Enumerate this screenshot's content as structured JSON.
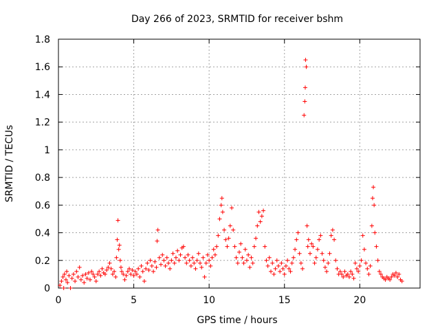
{
  "chart_data": {
    "type": "scatter",
    "title": "Day 266 of 2023, SRMTID for receiver bshm",
    "xlabel": "GPS time / hours",
    "ylabel": "SRMTID / TECUs",
    "xlim": [
      0,
      24
    ],
    "ylim": [
      0,
      1.8
    ],
    "xticks": [
      0,
      5,
      10,
      15,
      20
    ],
    "xtick_labels": [
      "0",
      "5",
      "10",
      "15",
      "20"
    ],
    "yticks": [
      0,
      0.2,
      0.4,
      0.6,
      0.8,
      1,
      1.2,
      1.4,
      1.6,
      1.8
    ],
    "ytick_labels": [
      "0",
      "0.2",
      "0.4",
      "0.6",
      "0.8",
      "1",
      "1.2",
      "1.4",
      "1.6",
      "1.8"
    ],
    "grid": true,
    "marker": "+",
    "color": "#ff0000",
    "series": [
      {
        "name": "SRMTID",
        "points": [
          [
            0.1,
            0.02
          ],
          [
            0.2,
            0.05
          ],
          [
            0.3,
            0.08
          ],
          [
            0.35,
            0.0
          ],
          [
            0.4,
            0.1
          ],
          [
            0.5,
            0.06
          ],
          [
            0.55,
            0.12
          ],
          [
            0.6,
            0.04
          ],
          [
            0.7,
            0.09
          ],
          [
            0.8,
            0.0
          ],
          [
            0.9,
            0.07
          ],
          [
            1.0,
            0.1
          ],
          [
            1.1,
            0.05
          ],
          [
            1.2,
            0.12
          ],
          [
            1.3,
            0.08
          ],
          [
            1.4,
            0.15
          ],
          [
            1.5,
            0.06
          ],
          [
            1.6,
            0.09
          ],
          [
            1.7,
            0.04
          ],
          [
            1.8,
            0.1
          ],
          [
            1.9,
            0.07
          ],
          [
            2.0,
            0.11
          ],
          [
            2.1,
            0.06
          ],
          [
            2.2,
            0.12
          ],
          [
            2.3,
            0.1
          ],
          [
            2.4,
            0.08
          ],
          [
            2.5,
            0.05
          ],
          [
            2.6,
            0.1
          ],
          [
            2.7,
            0.12
          ],
          [
            2.8,
            0.09
          ],
          [
            2.9,
            0.14
          ],
          [
            3.0,
            0.11
          ],
          [
            3.1,
            0.1
          ],
          [
            3.2,
            0.13
          ],
          [
            3.3,
            0.15
          ],
          [
            3.4,
            0.18
          ],
          [
            3.5,
            0.14
          ],
          [
            3.6,
            0.1
          ],
          [
            3.7,
            0.12
          ],
          [
            3.8,
            0.08
          ],
          [
            3.85,
            0.22
          ],
          [
            3.9,
            0.35
          ],
          [
            3.95,
            0.49
          ],
          [
            4.0,
            0.28
          ],
          [
            4.05,
            0.31
          ],
          [
            4.1,
            0.2
          ],
          [
            4.15,
            0.15
          ],
          [
            4.2,
            0.12
          ],
          [
            4.3,
            0.1
          ],
          [
            4.4,
            0.06
          ],
          [
            4.5,
            0.09
          ],
          [
            4.6,
            0.12
          ],
          [
            4.7,
            0.14
          ],
          [
            4.8,
            0.1
          ],
          [
            4.9,
            0.13
          ],
          [
            5.0,
            0.09
          ],
          [
            5.1,
            0.12
          ],
          [
            5.2,
            0.1
          ],
          [
            5.3,
            0.14
          ],
          [
            5.4,
            0.08
          ],
          [
            5.5,
            0.16
          ],
          [
            5.6,
            0.12
          ],
          [
            5.7,
            0.05
          ],
          [
            5.8,
            0.14
          ],
          [
            5.9,
            0.18
          ],
          [
            6.0,
            0.13
          ],
          [
            6.1,
            0.2
          ],
          [
            6.2,
            0.16
          ],
          [
            6.3,
            0.12
          ],
          [
            6.4,
            0.19
          ],
          [
            6.5,
            0.15
          ],
          [
            6.55,
            0.34
          ],
          [
            6.6,
            0.42
          ],
          [
            6.7,
            0.22
          ],
          [
            6.8,
            0.17
          ],
          [
            6.9,
            0.24
          ],
          [
            7.0,
            0.2
          ],
          [
            7.1,
            0.16
          ],
          [
            7.2,
            0.22
          ],
          [
            7.3,
            0.18
          ],
          [
            7.4,
            0.14
          ],
          [
            7.5,
            0.2
          ],
          [
            7.6,
            0.25
          ],
          [
            7.7,
            0.18
          ],
          [
            7.8,
            0.22
          ],
          [
            7.9,
            0.27
          ],
          [
            8.0,
            0.2
          ],
          [
            8.1,
            0.24
          ],
          [
            8.2,
            0.29
          ],
          [
            8.3,
            0.3
          ],
          [
            8.4,
            0.22
          ],
          [
            8.5,
            0.18
          ],
          [
            8.6,
            0.24
          ],
          [
            8.7,
            0.2
          ],
          [
            8.8,
            0.16
          ],
          [
            8.9,
            0.22
          ],
          [
            9.0,
            0.18
          ],
          [
            9.1,
            0.14
          ],
          [
            9.2,
            0.2
          ],
          [
            9.3,
            0.25
          ],
          [
            9.4,
            0.18
          ],
          [
            9.5,
            0.15
          ],
          [
            9.6,
            0.22
          ],
          [
            9.7,
            0.08
          ],
          [
            9.8,
            0.18
          ],
          [
            9.9,
            0.24
          ],
          [
            10.0,
            0.2
          ],
          [
            10.1,
            0.16
          ],
          [
            10.2,
            0.22
          ],
          [
            10.3,
            0.28
          ],
          [
            10.4,
            0.24
          ],
          [
            10.5,
            0.3
          ],
          [
            10.6,
            0.38
          ],
          [
            10.7,
            0.5
          ],
          [
            10.8,
            0.6
          ],
          [
            10.85,
            0.65
          ],
          [
            10.9,
            0.55
          ],
          [
            11.0,
            0.42
          ],
          [
            11.1,
            0.35
          ],
          [
            11.2,
            0.3
          ],
          [
            11.3,
            0.36
          ],
          [
            11.4,
            0.45
          ],
          [
            11.5,
            0.58
          ],
          [
            11.6,
            0.42
          ],
          [
            11.7,
            0.3
          ],
          [
            11.8,
            0.22
          ],
          [
            11.9,
            0.18
          ],
          [
            12.0,
            0.26
          ],
          [
            12.1,
            0.32
          ],
          [
            12.2,
            0.22
          ],
          [
            12.3,
            0.18
          ],
          [
            12.4,
            0.28
          ],
          [
            12.5,
            0.2
          ],
          [
            12.6,
            0.24
          ],
          [
            12.7,
            0.15
          ],
          [
            12.8,
            0.22
          ],
          [
            12.9,
            0.18
          ],
          [
            13.0,
            0.3
          ],
          [
            13.1,
            0.36
          ],
          [
            13.2,
            0.45
          ],
          [
            13.3,
            0.55
          ],
          [
            13.4,
            0.48
          ],
          [
            13.5,
            0.52
          ],
          [
            13.6,
            0.56
          ],
          [
            13.7,
            0.3
          ],
          [
            13.8,
            0.2
          ],
          [
            13.9,
            0.16
          ],
          [
            14.0,
            0.22
          ],
          [
            14.1,
            0.12
          ],
          [
            14.2,
            0.18
          ],
          [
            14.3,
            0.1
          ],
          [
            14.4,
            0.14
          ],
          [
            14.5,
            0.2
          ],
          [
            14.6,
            0.16
          ],
          [
            14.7,
            0.12
          ],
          [
            14.8,
            0.18
          ],
          [
            14.9,
            0.14
          ],
          [
            15.0,
            0.1
          ],
          [
            15.1,
            0.16
          ],
          [
            15.2,
            0.2
          ],
          [
            15.3,
            0.14
          ],
          [
            15.4,
            0.12
          ],
          [
            15.5,
            0.18
          ],
          [
            15.6,
            0.22
          ],
          [
            15.7,
            0.28
          ],
          [
            15.8,
            0.35
          ],
          [
            15.9,
            0.4
          ],
          [
            16.0,
            0.25
          ],
          [
            16.1,
            0.18
          ],
          [
            16.2,
            0.14
          ],
          [
            16.3,
            1.25
          ],
          [
            16.35,
            1.35
          ],
          [
            16.38,
            1.45
          ],
          [
            16.4,
            1.65
          ],
          [
            16.45,
            1.6
          ],
          [
            16.5,
            0.45
          ],
          [
            16.55,
            0.3
          ],
          [
            16.6,
            0.35
          ],
          [
            16.7,
            0.25
          ],
          [
            16.8,
            0.32
          ],
          [
            16.9,
            0.3
          ],
          [
            17.0,
            0.18
          ],
          [
            17.1,
            0.22
          ],
          [
            17.2,
            0.28
          ],
          [
            17.3,
            0.35
          ],
          [
            17.4,
            0.38
          ],
          [
            17.5,
            0.25
          ],
          [
            17.6,
            0.2
          ],
          [
            17.7,
            0.15
          ],
          [
            17.8,
            0.12
          ],
          [
            17.9,
            0.18
          ],
          [
            18.0,
            0.25
          ],
          [
            18.1,
            0.38
          ],
          [
            18.2,
            0.42
          ],
          [
            18.3,
            0.35
          ],
          [
            18.4,
            0.2
          ],
          [
            18.5,
            0.14
          ],
          [
            18.6,
            0.1
          ],
          [
            18.7,
            0.12
          ],
          [
            18.8,
            0.1
          ],
          [
            18.9,
            0.08
          ],
          [
            19.0,
            0.12
          ],
          [
            19.1,
            0.09
          ],
          [
            19.2,
            0.1
          ],
          [
            19.3,
            0.08
          ],
          [
            19.4,
            0.12
          ],
          [
            19.5,
            0.1
          ],
          [
            19.6,
            0.07
          ],
          [
            19.7,
            0.18
          ],
          [
            19.8,
            0.14
          ],
          [
            19.9,
            0.12
          ],
          [
            20.0,
            0.16
          ],
          [
            20.1,
            0.2
          ],
          [
            20.2,
            0.38
          ],
          [
            20.3,
            0.28
          ],
          [
            20.4,
            0.18
          ],
          [
            20.5,
            0.14
          ],
          [
            20.6,
            0.1
          ],
          [
            20.7,
            0.16
          ],
          [
            20.8,
            0.45
          ],
          [
            20.85,
            0.65
          ],
          [
            20.9,
            0.73
          ],
          [
            20.95,
            0.6
          ],
          [
            21.0,
            0.4
          ],
          [
            21.1,
            0.3
          ],
          [
            21.2,
            0.2
          ],
          [
            21.3,
            0.12
          ],
          [
            21.4,
            0.1
          ],
          [
            21.5,
            0.08
          ],
          [
            21.6,
            0.07
          ],
          [
            21.7,
            0.06
          ],
          [
            21.8,
            0.08
          ],
          [
            21.9,
            0.07
          ],
          [
            22.0,
            0.06
          ],
          [
            22.1,
            0.08
          ],
          [
            22.2,
            0.1
          ],
          [
            22.3,
            0.09
          ],
          [
            22.4,
            0.11
          ],
          [
            22.5,
            0.08
          ],
          [
            22.6,
            0.1
          ],
          [
            22.7,
            0.06
          ],
          [
            22.8,
            0.05
          ]
        ]
      }
    ]
  }
}
